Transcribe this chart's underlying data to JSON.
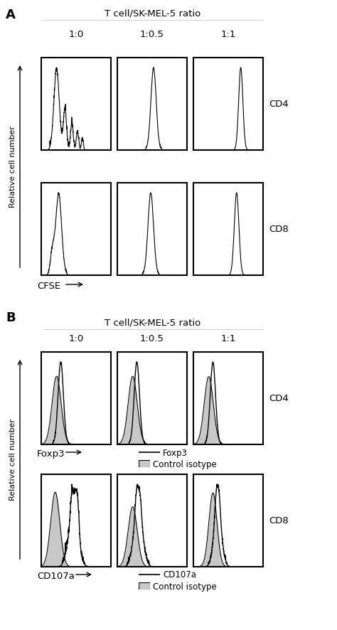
{
  "panel_A_title": "T cell/SK-MEL-5 ratio",
  "panel_B_title": "T cell/SK-MEL-5 ratio",
  "ratios": [
    "1:0",
    "1:0.5",
    "1:1"
  ],
  "row_labels_A": [
    "CD4",
    "CD8"
  ],
  "row_labels_B": [
    "CD4",
    "CD8"
  ],
  "xlabel_A": "CFSE",
  "xlabel_B_top": "Foxp3",
  "xlabel_B_bottom": "CD107a",
  "ylabel": "Relative cell number",
  "panel_label_A": "A",
  "panel_label_B": "B",
  "legend_B_top": [
    "Foxp3",
    "Control isotype"
  ],
  "legend_B_bottom": [
    "CD107a",
    "Control isotype"
  ],
  "line_color": "#000000",
  "fill_color": "#c8c8c8",
  "background": "#ffffff",
  "fig_width": 4.74,
  "fig_height": 8.87,
  "dpi": 100
}
